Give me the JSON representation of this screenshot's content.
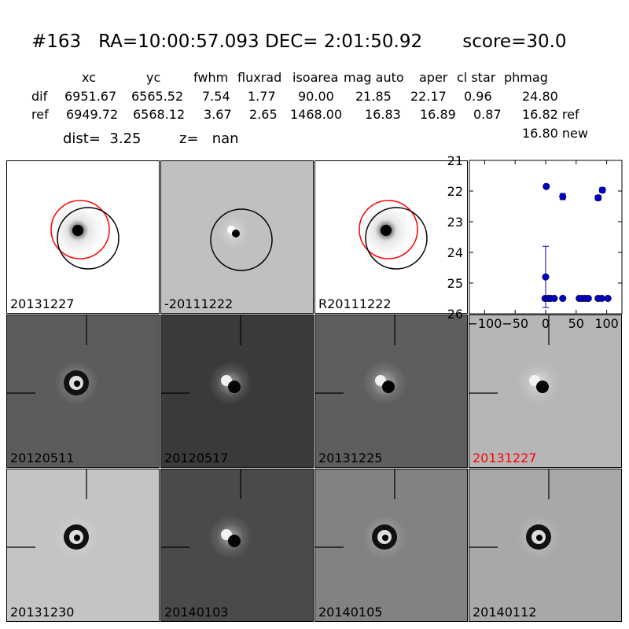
{
  "header": {
    "title": "#163   RA=10:00:57.093 DEC= 2:01:50.92       score=30.0",
    "columns": [
      {
        "name": "xc",
        "dif": "6951.67",
        "ref": "6949.72"
      },
      {
        "name": "yc",
        "dif": "6565.52",
        "ref": "6568.12"
      },
      {
        "name": "fwhm",
        "dif": "7.54",
        "ref": "3.67"
      },
      {
        "name": "fluxrad",
        "dif": "1.77",
        "ref": "2.65"
      },
      {
        "name": "isoarea",
        "dif": "90.00",
        "ref": "1468.00"
      },
      {
        "name": "mag auto",
        "dif": "21.85",
        "ref": "16.83"
      },
      {
        "name": "aper",
        "dif": "22.17",
        "ref": "16.89"
      },
      {
        "name": "cl star",
        "dif": "0.96",
        "ref": "0.87"
      },
      {
        "name": "phmag",
        "dif": "24.80",
        "ref": "16.82 ref"
      }
    ],
    "row_labels": {
      "dif": "dif",
      "ref": "ref"
    },
    "phmag_new": "16.80 new",
    "dist_label": "dist=",
    "dist_value": "3.25",
    "z_label": "z=",
    "z_value": "nan"
  },
  "top_panels": [
    {
      "label": "20131227",
      "bg": "#ffffff",
      "red_circle": true
    },
    {
      "label": "-20111222",
      "bg": "#c0c0c0",
      "red_circle": false
    },
    {
      "label": "R20111222",
      "bg": "#ffffff",
      "red_circle": true
    }
  ],
  "stamps": [
    {
      "label": "20120511",
      "bg": "#5c5c5c",
      "label_color": "#000000"
    },
    {
      "label": "20120517",
      "bg": "#3a3a3a",
      "label_color": "#000000"
    },
    {
      "label": "20131225",
      "bg": "#5e5e5e",
      "label_color": "#000000"
    },
    {
      "label": "20131227",
      "bg": "#b6b6b6",
      "label_color": "#ff0000"
    },
    {
      "label": "20131230",
      "bg": "#c4c4c4",
      "label_color": "#000000"
    },
    {
      "label": "20140103",
      "bg": "#4a4a4a",
      "label_color": "#000000"
    },
    {
      "label": "20140105",
      "bg": "#828282",
      "label_color": "#000000"
    },
    {
      "label": "20140112",
      "bg": "#a8a8a8",
      "label_color": "#000000"
    }
  ],
  "chart_data": {
    "type": "scatter",
    "title": "",
    "xlabel": "",
    "ylabel": "",
    "xlim": [
      -125,
      125
    ],
    "ylim": [
      26,
      21
    ],
    "x_ticks": [
      -100,
      -50,
      0,
      50,
      100
    ],
    "y_ticks": [
      21,
      22,
      23,
      24,
      25,
      26
    ],
    "x_tick_labels": [
      "−100",
      "−50",
      "0",
      "50",
      "100"
    ],
    "y_tick_labels": [
      "21",
      "22",
      "23",
      "24",
      "25",
      "26"
    ],
    "color": "#0000cc",
    "points": [
      {
        "x": 0,
        "y": 24.8,
        "err": 1.0
      },
      {
        "x": 1,
        "y": 21.85,
        "err": 0.05
      },
      {
        "x": 28,
        "y": 22.18,
        "err": 0.1
      },
      {
        "x": 86,
        "y": 22.22,
        "err": 0.08
      },
      {
        "x": 93,
        "y": 21.97,
        "err": 0.08
      },
      {
        "x": -1,
        "y": 25.5,
        "err": 0
      },
      {
        "x": 4,
        "y": 25.5,
        "err": 0
      },
      {
        "x": 8,
        "y": 25.5,
        "err": 0
      },
      {
        "x": 14,
        "y": 25.5,
        "err": 0
      },
      {
        "x": 28,
        "y": 25.5,
        "err": 0
      },
      {
        "x": 55,
        "y": 25.5,
        "err": 0
      },
      {
        "x": 60,
        "y": 25.5,
        "err": 0
      },
      {
        "x": 65,
        "y": 25.5,
        "err": 0
      },
      {
        "x": 70,
        "y": 25.5,
        "err": 0
      },
      {
        "x": 86,
        "y": 25.5,
        "err": 0
      },
      {
        "x": 92,
        "y": 25.5,
        "err": 0
      },
      {
        "x": 102,
        "y": 25.5,
        "err": 0
      }
    ]
  }
}
